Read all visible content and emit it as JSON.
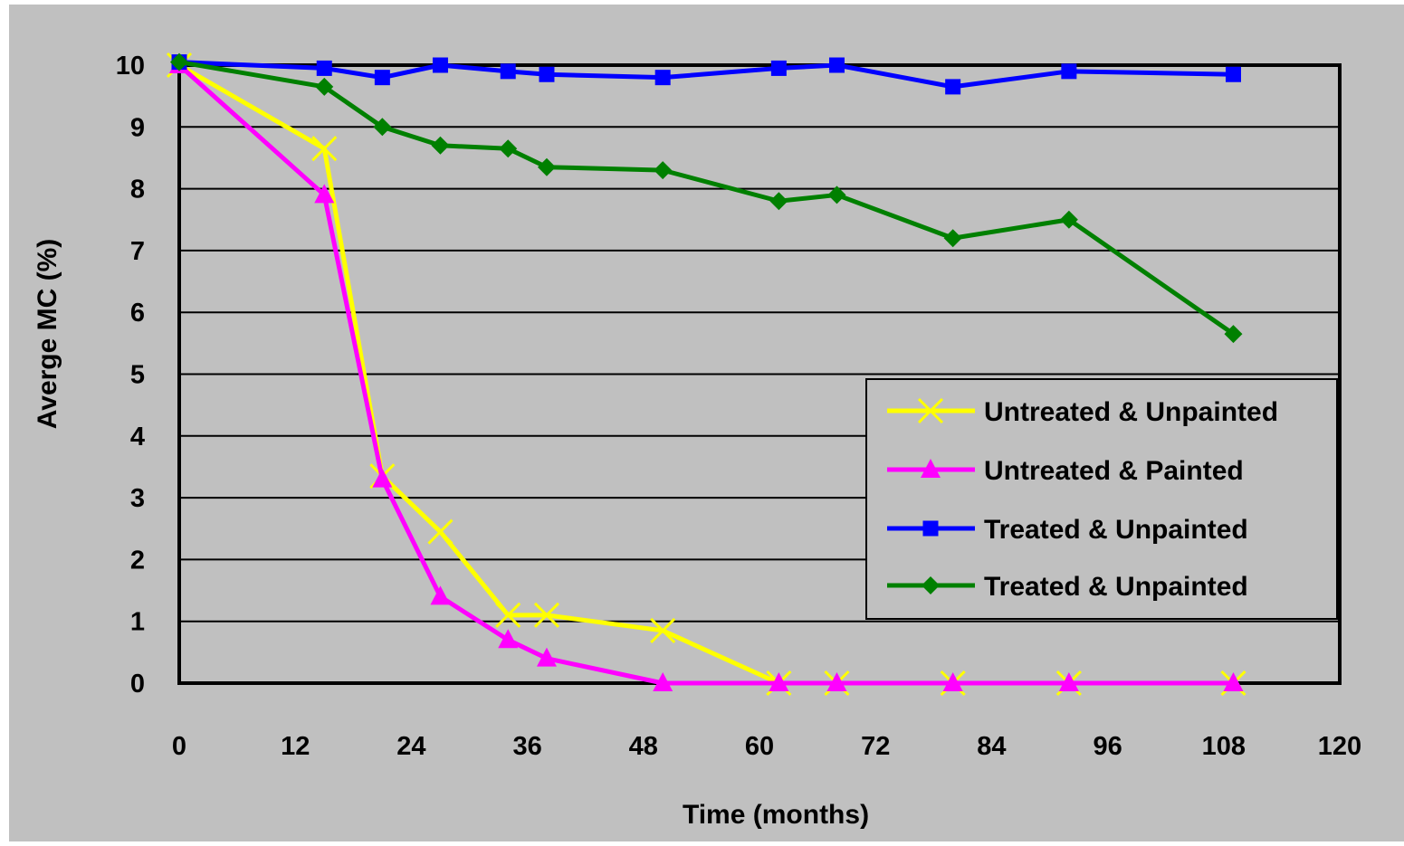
{
  "chart_data": {
    "type": "line",
    "title": "",
    "xlabel": "Time (months)",
    "ylabel": "Averge MC (%)",
    "xlim": [
      0,
      120
    ],
    "ylim": [
      0,
      10
    ],
    "xticks": [
      "0",
      "12",
      "24",
      "36",
      "48",
      "60",
      "72",
      "84",
      "96",
      "108",
      "120"
    ],
    "yticks": [
      "0",
      "1",
      "2",
      "3",
      "4",
      "5",
      "6",
      "7",
      "8",
      "9",
      "10"
    ],
    "grid": "horizontal",
    "legend_position": "right",
    "series": [
      {
        "name": "Untreated & Unpainted",
        "color": "#ffff00",
        "marker": "x",
        "x": [
          0,
          15,
          21,
          27,
          34,
          38,
          50,
          62,
          68,
          80,
          92,
          109
        ],
        "y": [
          10,
          8.65,
          3.35,
          2.45,
          1.1,
          1.1,
          0.85,
          0,
          0,
          0,
          0,
          0
        ]
      },
      {
        "name": "Untreated & Painted",
        "color": "#ff00ff",
        "marker": "triangle",
        "x": [
          0,
          15,
          21,
          27,
          34,
          38,
          50,
          62,
          68,
          80,
          92,
          109
        ],
        "y": [
          10,
          7.9,
          3.3,
          1.4,
          0.7,
          0.4,
          0,
          0,
          0,
          0,
          0,
          0
        ]
      },
      {
        "name": "Treated & Unpainted",
        "color": "#0000ff",
        "marker": "square",
        "x": [
          0,
          15,
          21,
          27,
          34,
          38,
          50,
          62,
          68,
          80,
          92,
          109
        ],
        "y": [
          10.05,
          9.95,
          9.8,
          10,
          9.9,
          9.85,
          9.8,
          9.95,
          10,
          9.65,
          9.9,
          9.85
        ]
      },
      {
        "name": "Treated & Unpainted",
        "color": "#008000",
        "marker": "diamond",
        "x": [
          0,
          15,
          21,
          27,
          34,
          38,
          50,
          62,
          68,
          80,
          92,
          109
        ],
        "y": [
          10.05,
          9.65,
          9.0,
          8.7,
          8.65,
          8.35,
          8.3,
          7.8,
          7.9,
          7.2,
          7.5,
          5.65
        ]
      }
    ]
  },
  "colors": {
    "plot_background": "#c0c0c0",
    "outer_background": "#c0c0c0",
    "grid": "#000000"
  }
}
